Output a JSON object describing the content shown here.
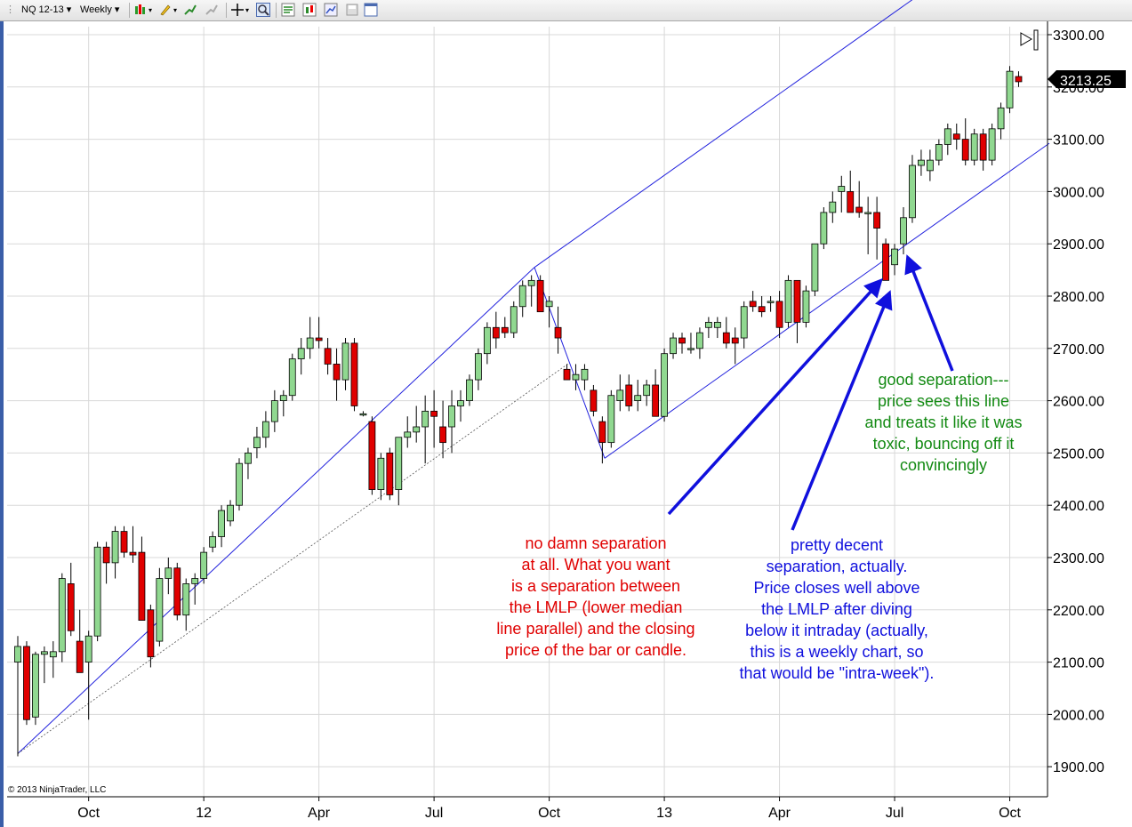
{
  "toolbar": {
    "instrument": "NQ 12-13",
    "period": "Weekly"
  },
  "current_price": "3213.25",
  "copyright": "© 2013 NinjaTrader, LLC",
  "annotations": {
    "red": "no damn separation\nat all. What you want\nis a separation between\nthe LMLP (lower median\nline parallel) and the closing\nprice of the bar or candle.",
    "blue": "pretty decent\nseparation, actually.\nPrice closes well above\nthe LMLP after diving\nbelow it intraday (actually,\nthis is a weekly chart, so\nthat would be \"intra-week\").",
    "green": "good separation---\nprice sees this line\nand treats it like it was\ntoxic, bouncing off it\nconvincingly"
  },
  "colors": {
    "up": "#90d890",
    "down": "#e00000",
    "channel": "#2222dd",
    "arrow": "#1010dd",
    "red_text": "#e00000",
    "blue_text": "#1010dd",
    "green_text": "#138a13"
  },
  "chart_data": {
    "type": "candlestick",
    "ylim": [
      1870,
      3330
    ],
    "yticks": [
      1900,
      2000,
      2100,
      2200,
      2300,
      2400,
      2500,
      2600,
      2700,
      2800,
      2900,
      3000,
      3100,
      3200,
      3300
    ],
    "ytick_labels": [
      "1900.00",
      "2000.00",
      "2100.00",
      "2200.00",
      "2300.00",
      "2400.00",
      "2500.00",
      "2600.00",
      "2700.00",
      "2800.00",
      "2900.00",
      "3000.00",
      "3100.00",
      "3200.00",
      "3300.00"
    ],
    "xticks": [
      {
        "label": "Oct",
        "week": 8
      },
      {
        "label": "12",
        "week": 21
      },
      {
        "label": "Apr",
        "week": 34
      },
      {
        "label": "Jul",
        "week": 47
      },
      {
        "label": "Oct",
        "week": 60
      },
      {
        "label": "13",
        "week": 73
      },
      {
        "label": "Apr",
        "week": 86
      },
      {
        "label": "Jul",
        "week": 99
      },
      {
        "label": "Oct",
        "week": 112
      }
    ],
    "candles": [
      {
        "o": 2100,
        "h": 2150,
        "l": 1920,
        "c": 2130
      },
      {
        "o": 2130,
        "h": 2140,
        "l": 1980,
        "c": 1990
      },
      {
        "o": 1995,
        "h": 2120,
        "l": 1980,
        "c": 2115
      },
      {
        "o": 2115,
        "h": 2130,
        "l": 2060,
        "c": 2120
      },
      {
        "o": 2110,
        "h": 2140,
        "l": 2070,
        "c": 2120
      },
      {
        "o": 2120,
        "h": 2270,
        "l": 2100,
        "c": 2260
      },
      {
        "o": 2250,
        "h": 2290,
        "l": 2150,
        "c": 2160
      },
      {
        "o": 2140,
        "h": 2200,
        "l": 2080,
        "c": 2080
      },
      {
        "o": 2100,
        "h": 2160,
        "l": 1990,
        "c": 2150
      },
      {
        "o": 2150,
        "h": 2330,
        "l": 2140,
        "c": 2320
      },
      {
        "o": 2320,
        "h": 2330,
        "l": 2250,
        "c": 2290
      },
      {
        "o": 2290,
        "h": 2360,
        "l": 2260,
        "c": 2350
      },
      {
        "o": 2350,
        "h": 2360,
        "l": 2300,
        "c": 2310
      },
      {
        "o": 2310,
        "h": 2360,
        "l": 2290,
        "c": 2305
      },
      {
        "o": 2310,
        "h": 2340,
        "l": 2180,
        "c": 2180
      },
      {
        "o": 2200,
        "h": 2210,
        "l": 2090,
        "c": 2110
      },
      {
        "o": 2140,
        "h": 2280,
        "l": 2130,
        "c": 2260
      },
      {
        "o": 2260,
        "h": 2300,
        "l": 2230,
        "c": 2280
      },
      {
        "o": 2280,
        "h": 2290,
        "l": 2180,
        "c": 2190
      },
      {
        "o": 2190,
        "h": 2260,
        "l": 2160,
        "c": 2250
      },
      {
        "o": 2250,
        "h": 2270,
        "l": 2210,
        "c": 2260
      },
      {
        "o": 2260,
        "h": 2320,
        "l": 2250,
        "c": 2310
      },
      {
        "o": 2320,
        "h": 2350,
        "l": 2310,
        "c": 2340
      },
      {
        "o": 2340,
        "h": 2400,
        "l": 2320,
        "c": 2390
      },
      {
        "o": 2370,
        "h": 2410,
        "l": 2360,
        "c": 2400
      },
      {
        "o": 2400,
        "h": 2490,
        "l": 2390,
        "c": 2480
      },
      {
        "o": 2480,
        "h": 2510,
        "l": 2450,
        "c": 2500
      },
      {
        "o": 2510,
        "h": 2550,
        "l": 2490,
        "c": 2530
      },
      {
        "o": 2530,
        "h": 2580,
        "l": 2510,
        "c": 2560
      },
      {
        "o": 2560,
        "h": 2620,
        "l": 2540,
        "c": 2600
      },
      {
        "o": 2600,
        "h": 2620,
        "l": 2570,
        "c": 2610
      },
      {
        "o": 2610,
        "h": 2690,
        "l": 2600,
        "c": 2680
      },
      {
        "o": 2680,
        "h": 2720,
        "l": 2650,
        "c": 2700
      },
      {
        "o": 2700,
        "h": 2760,
        "l": 2680,
        "c": 2720
      },
      {
        "o": 2720,
        "h": 2760,
        "l": 2700,
        "c": 2715
      },
      {
        "o": 2700,
        "h": 2720,
        "l": 2650,
        "c": 2670
      },
      {
        "o": 2670,
        "h": 2700,
        "l": 2600,
        "c": 2640
      },
      {
        "o": 2640,
        "h": 2720,
        "l": 2620,
        "c": 2710
      },
      {
        "o": 2710,
        "h": 2720,
        "l": 2580,
        "c": 2590
      },
      {
        "o": 2575,
        "h": 2580,
        "l": 2570,
        "c": 2575
      },
      {
        "o": 2560,
        "h": 2570,
        "l": 2420,
        "c": 2430
      },
      {
        "o": 2430,
        "h": 2500,
        "l": 2410,
        "c": 2490
      },
      {
        "o": 2500,
        "h": 2510,
        "l": 2410,
        "c": 2420
      },
      {
        "o": 2430,
        "h": 2530,
        "l": 2400,
        "c": 2530
      },
      {
        "o": 2530,
        "h": 2570,
        "l": 2510,
        "c": 2540
      },
      {
        "o": 2540,
        "h": 2590,
        "l": 2520,
        "c": 2550
      },
      {
        "o": 2550,
        "h": 2610,
        "l": 2480,
        "c": 2580
      },
      {
        "o": 2580,
        "h": 2620,
        "l": 2510,
        "c": 2570
      },
      {
        "o": 2550,
        "h": 2600,
        "l": 2490,
        "c": 2520
      },
      {
        "o": 2550,
        "h": 2620,
        "l": 2500,
        "c": 2590
      },
      {
        "o": 2590,
        "h": 2620,
        "l": 2560,
        "c": 2600
      },
      {
        "o": 2600,
        "h": 2650,
        "l": 2590,
        "c": 2640
      },
      {
        "o": 2640,
        "h": 2700,
        "l": 2620,
        "c": 2690
      },
      {
        "o": 2690,
        "h": 2750,
        "l": 2670,
        "c": 2740
      },
      {
        "o": 2740,
        "h": 2770,
        "l": 2700,
        "c": 2720
      },
      {
        "o": 2740,
        "h": 2760,
        "l": 2720,
        "c": 2730
      },
      {
        "o": 2730,
        "h": 2790,
        "l": 2720,
        "c": 2780
      },
      {
        "o": 2780,
        "h": 2830,
        "l": 2760,
        "c": 2820
      },
      {
        "o": 2820,
        "h": 2840,
        "l": 2780,
        "c": 2830
      },
      {
        "o": 2830,
        "h": 2840,
        "l": 2770,
        "c": 2770
      },
      {
        "o": 2780,
        "h": 2800,
        "l": 2740,
        "c": 2790
      },
      {
        "o": 2740,
        "h": 2780,
        "l": 2690,
        "c": 2720
      },
      {
        "o": 2660,
        "h": 2670,
        "l": 2640,
        "c": 2640
      },
      {
        "o": 2640,
        "h": 2670,
        "l": 2620,
        "c": 2650
      },
      {
        "o": 2640,
        "h": 2670,
        "l": 2620,
        "c": 2660
      },
      {
        "o": 2620,
        "h": 2630,
        "l": 2570,
        "c": 2580
      },
      {
        "o": 2560,
        "h": 2570,
        "l": 2480,
        "c": 2520
      },
      {
        "o": 2520,
        "h": 2620,
        "l": 2510,
        "c": 2610
      },
      {
        "o": 2600,
        "h": 2650,
        "l": 2580,
        "c": 2620
      },
      {
        "o": 2630,
        "h": 2650,
        "l": 2580,
        "c": 2590
      },
      {
        "o": 2600,
        "h": 2640,
        "l": 2580,
        "c": 2610
      },
      {
        "o": 2610,
        "h": 2640,
        "l": 2590,
        "c": 2630
      },
      {
        "o": 2630,
        "h": 2660,
        "l": 2570,
        "c": 2570
      },
      {
        "o": 2570,
        "h": 2700,
        "l": 2560,
        "c": 2690
      },
      {
        "o": 2690,
        "h": 2730,
        "l": 2680,
        "c": 2720
      },
      {
        "o": 2720,
        "h": 2730,
        "l": 2690,
        "c": 2710
      },
      {
        "o": 2700,
        "h": 2730,
        "l": 2690,
        "c": 2700
      },
      {
        "o": 2700,
        "h": 2740,
        "l": 2680,
        "c": 2730
      },
      {
        "o": 2740,
        "h": 2760,
        "l": 2720,
        "c": 2750
      },
      {
        "o": 2740,
        "h": 2760,
        "l": 2720,
        "c": 2750
      },
      {
        "o": 2730,
        "h": 2760,
        "l": 2700,
        "c": 2710
      },
      {
        "o": 2720,
        "h": 2740,
        "l": 2670,
        "c": 2710
      },
      {
        "o": 2720,
        "h": 2790,
        "l": 2700,
        "c": 2780
      },
      {
        "o": 2790,
        "h": 2810,
        "l": 2770,
        "c": 2780
      },
      {
        "o": 2780,
        "h": 2800,
        "l": 2760,
        "c": 2770
      },
      {
        "o": 2790,
        "h": 2800,
        "l": 2770,
        "c": 2790
      },
      {
        "o": 2790,
        "h": 2810,
        "l": 2720,
        "c": 2740
      },
      {
        "o": 2750,
        "h": 2840,
        "l": 2740,
        "c": 2830
      },
      {
        "o": 2830,
        "h": 2830,
        "l": 2710,
        "c": 2750
      },
      {
        "o": 2750,
        "h": 2820,
        "l": 2740,
        "c": 2810
      },
      {
        "o": 2810,
        "h": 2900,
        "l": 2800,
        "c": 2900
      },
      {
        "o": 2900,
        "h": 2970,
        "l": 2890,
        "c": 2960
      },
      {
        "o": 2960,
        "h": 3000,
        "l": 2940,
        "c": 2980
      },
      {
        "o": 3000,
        "h": 3030,
        "l": 2960,
        "c": 3010
      },
      {
        "o": 3000,
        "h": 3040,
        "l": 2960,
        "c": 2960
      },
      {
        "o": 2970,
        "h": 3020,
        "l": 2950,
        "c": 2960
      },
      {
        "o": 2960,
        "h": 2990,
        "l": 2880,
        "c": 2960
      },
      {
        "o": 2960,
        "h": 2990,
        "l": 2870,
        "c": 2930
      },
      {
        "o": 2900,
        "h": 2910,
        "l": 2830,
        "c": 2830
      },
      {
        "o": 2860,
        "h": 2900,
        "l": 2840,
        "c": 2890
      },
      {
        "o": 2900,
        "h": 2970,
        "l": 2880,
        "c": 2950
      },
      {
        "o": 2950,
        "h": 3070,
        "l": 2940,
        "c": 3050
      },
      {
        "o": 3050,
        "h": 3080,
        "l": 3030,
        "c": 3060
      },
      {
        "o": 3040,
        "h": 3080,
        "l": 3020,
        "c": 3060
      },
      {
        "o": 3060,
        "h": 3100,
        "l": 3050,
        "c": 3090
      },
      {
        "o": 3090,
        "h": 3130,
        "l": 3070,
        "c": 3120
      },
      {
        "o": 3110,
        "h": 3130,
        "l": 3080,
        "c": 3100
      },
      {
        "o": 3100,
        "h": 3140,
        "l": 3050,
        "c": 3060
      },
      {
        "o": 3060,
        "h": 3120,
        "l": 3050,
        "c": 3110
      },
      {
        "o": 3110,
        "h": 3120,
        "l": 3040,
        "c": 3060
      },
      {
        "o": 3060,
        "h": 3130,
        "l": 3050,
        "c": 3120
      },
      {
        "o": 3120,
        "h": 3170,
        "l": 3100,
        "c": 3160
      },
      {
        "o": 3160,
        "h": 3240,
        "l": 3150,
        "c": 3230
      },
      {
        "o": 3220,
        "h": 3230,
        "l": 3200,
        "c": 3210
      }
    ]
  }
}
